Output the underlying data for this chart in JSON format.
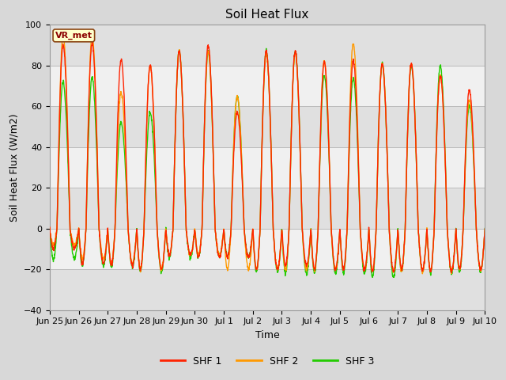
{
  "title": "Soil Heat Flux",
  "ylabel": "Soil Heat Flux (W/m2)",
  "xlabel": "Time",
  "ylim": [
    -40,
    100
  ],
  "yticks": [
    -40,
    -20,
    0,
    20,
    40,
    60,
    80,
    100
  ],
  "fig_bg_color": "#d8d8d8",
  "plot_bg_color": "#ffffff",
  "band_colors": [
    "#e0e0e0",
    "#f0f0f0"
  ],
  "grid_color": "#cccccc",
  "colors": {
    "SHF 1": "#ff2200",
    "SHF 2": "#ff9900",
    "SHF 3": "#22cc00"
  },
  "linewidth": 1.0,
  "annotation_text": "VR_met",
  "tick_label_fontsize": 8,
  "axis_label_fontsize": 9,
  "title_fontsize": 11
}
